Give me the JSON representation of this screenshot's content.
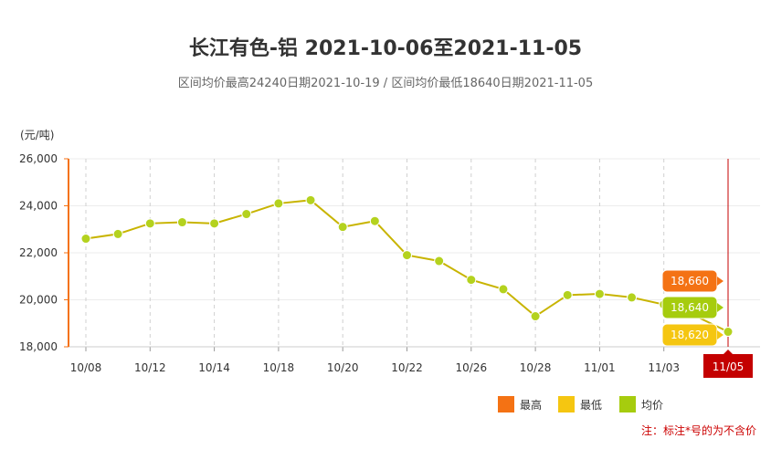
{
  "chart_data": {
    "type": "line",
    "title": "长江有色-铝 2021-10-06至2021-11-05",
    "subtitle": "区间均价最高24240日期2021-10-19 / 区间均价最低18640日期2021-11-05",
    "ylabel": "(元/吨)",
    "ylim": [
      18000,
      26000
    ],
    "yticks": [
      "18,000",
      "20,000",
      "22,000",
      "24,000",
      "26,000"
    ],
    "ytick_values": [
      18000,
      20000,
      22000,
      24000,
      26000
    ],
    "xtick_labels": [
      "10/08",
      "10/12",
      "10/14",
      "10/18",
      "10/20",
      "10/22",
      "10/26",
      "10/28",
      "11/01",
      "11/03"
    ],
    "xtick_indices": [
      0,
      2,
      4,
      6,
      8,
      10,
      12,
      14,
      16,
      18
    ],
    "highlight_label": "11/05",
    "highlight_index": 20,
    "points": [
      22600,
      22800,
      23250,
      23300,
      23250,
      23650,
      24100,
      24240,
      23100,
      23350,
      21900,
      21650,
      20850,
      20450,
      19300,
      20200,
      20250,
      20100,
      19800,
      19300,
      18640
    ],
    "final_values": [
      {
        "name": "最高",
        "value": "18,660",
        "color": "#f47214"
      },
      {
        "name": "均价",
        "value": "18,640",
        "color": "#a6cc0e"
      },
      {
        "name": "最低",
        "value": "18,620",
        "color": "#f5c611"
      }
    ],
    "legend": [
      {
        "name": "最高",
        "color": "#f47214"
      },
      {
        "name": "最低",
        "color": "#f5c611"
      },
      {
        "name": "均价",
        "color": "#a6cc0e"
      }
    ],
    "grid": true,
    "legend_position": "bottom-right",
    "note": "注：标注*号的为不含价",
    "colors": {
      "line": "#c8b400",
      "marker": "#b4d21e",
      "axis": "#f47214",
      "highlight": "#c40000",
      "grid": "#d0d0d0"
    }
  }
}
